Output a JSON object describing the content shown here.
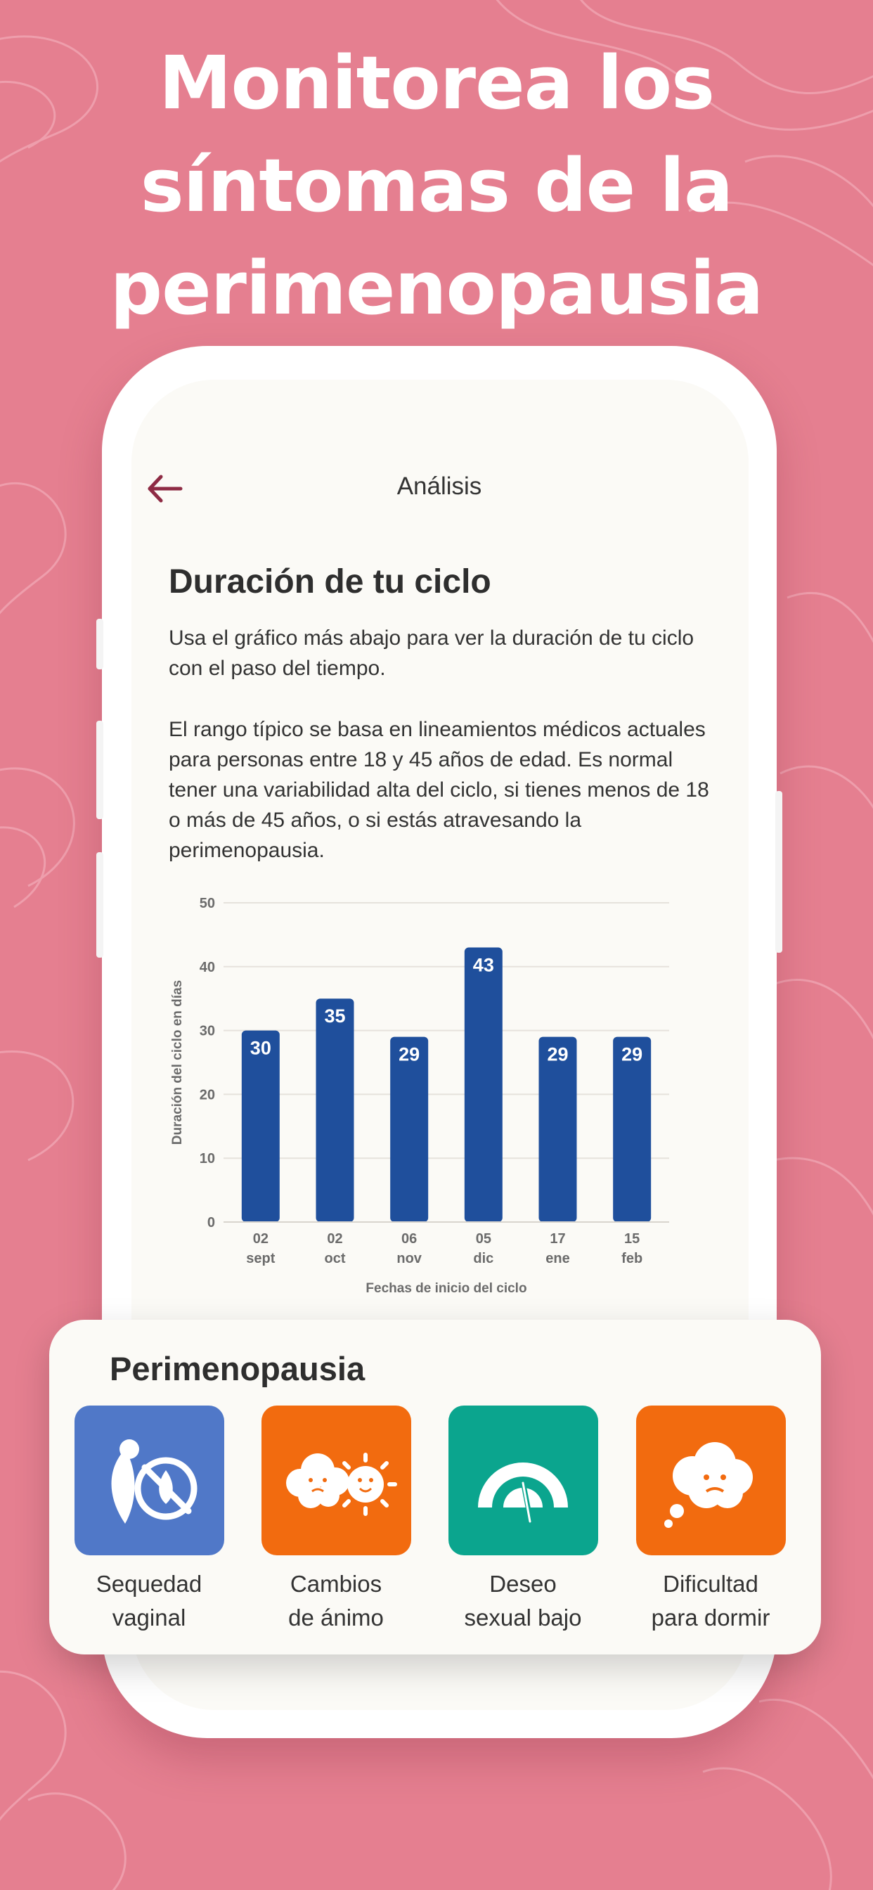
{
  "headline": [
    "Monitorea los",
    "síntomas de la",
    "perimenopausia"
  ],
  "nav": {
    "title": "Análisis",
    "back_icon": "arrow-left-icon"
  },
  "section": {
    "title": "Duración de tu ciclo",
    "intro": "Usa el gráfico más abajo para ver la duración de tu ciclo con el paso del tiempo.",
    "note": "El rango típico se basa en lineamientos médicos actuales para personas entre 18 y 45 años de edad. Es normal tener una variabilidad alta del ciclo, si tienes menos de 18 o más de 45 años, o si estás atravesando la perimenopausia."
  },
  "chart_data": {
    "type": "bar",
    "categories": [
      [
        "02",
        "sept"
      ],
      [
        "02",
        "oct"
      ],
      [
        "06",
        "nov"
      ],
      [
        "05",
        "dic"
      ],
      [
        "17",
        "ene"
      ],
      [
        "15",
        "feb"
      ]
    ],
    "values": [
      30,
      35,
      29,
      43,
      29,
      29
    ],
    "ylabel": "Duración del ciclo en días",
    "xlabel": "Fechas de inicio del ciclo",
    "ylim": [
      0,
      50
    ],
    "yticks": [
      0,
      10,
      20,
      30,
      40,
      50
    ],
    "grid": true,
    "bar_color": "#1f4f9c",
    "label_color": "#ffffff"
  },
  "card": {
    "title": "Perimenopausia",
    "items": [
      {
        "lines": [
          "Sequedad",
          "vaginal"
        ],
        "icon": "dryness-icon",
        "color": "#5078c8"
      },
      {
        "lines": [
          "Cambios",
          "de ánimo"
        ],
        "icon": "mood-swings-icon",
        "color": "#f26b0f"
      },
      {
        "lines": [
          "Deseo",
          "sexual bajo"
        ],
        "icon": "low-libido-gauge-icon",
        "color": "#0ba58e"
      },
      {
        "lines": [
          "Dificultad",
          "para dormir"
        ],
        "icon": "sleep-difficulty-icon",
        "color": "#f26b0f"
      }
    ]
  },
  "colors": {
    "background": "#e57f90",
    "accent": "#8e2b44",
    "surface": "#fbfaf6"
  }
}
